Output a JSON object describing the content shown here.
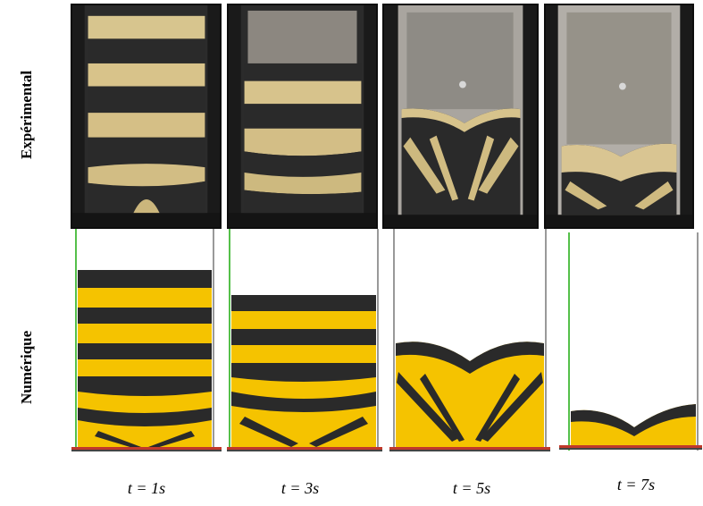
{
  "row_labels": {
    "experimental": "Expérimental",
    "numeric": "Numérique"
  },
  "time_labels": [
    "t = 1s",
    "t = 3s",
    "t = 5s",
    "t = 7s"
  ],
  "colors": {
    "yellow_grain": "#f5c300",
    "dark_grain": "#2a2a2a",
    "light_grain": "#d8c38a",
    "wall_green": "#55c04a",
    "floor_red": "#c0392b",
    "frame_dark": "#141414"
  }
}
